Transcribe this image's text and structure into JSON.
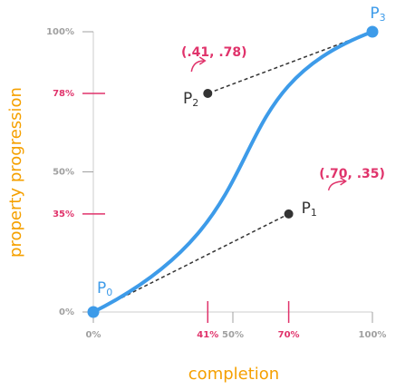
{
  "axes": {
    "x_label": "completion",
    "y_label": "property progression",
    "xlim": [
      0,
      100
    ],
    "ylim": [
      0,
      100
    ],
    "xticks": [
      {
        "value": 0,
        "label": "0%",
        "color": "#a0a0a0"
      },
      {
        "value": 41,
        "label": "41%",
        "color": "#e0336b"
      },
      {
        "value": 50,
        "label": "50%",
        "color": "#a0a0a0"
      },
      {
        "value": 70,
        "label": "70%",
        "color": "#e0336b"
      },
      {
        "value": 100,
        "label": "100%",
        "color": "#a0a0a0"
      }
    ],
    "yticks": [
      {
        "value": 0,
        "label": "0%",
        "color": "#a0a0a0"
      },
      {
        "value": 35,
        "label": "35%",
        "color": "#e0336b"
      },
      {
        "value": 50,
        "label": "50%",
        "color": "#a0a0a0"
      },
      {
        "value": 78,
        "label": "78%",
        "color": "#e0336b"
      },
      {
        "value": 100,
        "label": "100%",
        "color": "#a0a0a0"
      }
    ]
  },
  "points": [
    {
      "name": "P",
      "sub": "0",
      "x": 0,
      "y": 0,
      "color": "#3d9be9"
    },
    {
      "name": "P",
      "sub": "1",
      "x": 70,
      "y": 35,
      "color": "#333333"
    },
    {
      "name": "P",
      "sub": "2",
      "x": 41,
      "y": 78,
      "color": "#333333"
    },
    {
      "name": "P",
      "sub": "3",
      "x": 100,
      "y": 100,
      "color": "#3d9be9"
    }
  ],
  "curve_color": "#3d9be9",
  "annotations": [
    {
      "text": "(.41, .78)",
      "point": 2
    },
    {
      "text": "(.70, .35)",
      "point": 1
    }
  ]
}
